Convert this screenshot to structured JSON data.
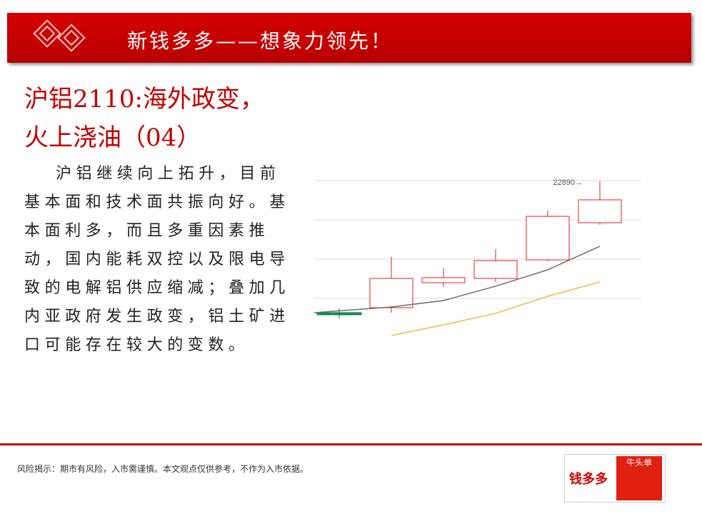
{
  "header": {
    "title": "新钱多多——想象力领先！"
  },
  "headline": [
    "沪铝2110:海外政变，",
    "火上浇油（04）"
  ],
  "body": "沪铝继续向上拓升，目前基本面和技术面共振向好。基本面利多，而且多重因素推动，国内能耗双控以及限电导致的电解铝供应缩减；叠加几内亚政府发生政变，铝土矿进口可能存在较大的变数。",
  "footer": {
    "disclaimer": "风险揭示：期市有风险，入市需谨慎。本文观点仅供参考，不作为入市依据。",
    "logo_left": "钱多多",
    "logo_right": "牛头单"
  },
  "chart_data": {
    "type": "candlestick",
    "categories": [
      null,
      null,
      null,
      null,
      null,
      null
    ],
    "open": [
      21210,
      21282,
      21600,
      21655,
      21891,
      22364
    ],
    "high": [
      21273,
      21927,
      21782,
      22027,
      22518,
      22890
    ],
    "low": [
      21145,
      21218,
      21545,
      21609,
      21873,
      22336
    ],
    "close": [
      21200,
      21655,
      21664,
      21882,
      22445,
      22655
    ],
    "up_color": "#e02020",
    "down_color": "#138a4a",
    "lines": [
      {
        "color": "#6d6d6d",
        "values": [
          21218,
          21291,
          21373,
          21555,
          21764,
          22064
        ]
      },
      {
        "color": "#f5b94a",
        "values": [
          null,
          20927,
          21064,
          21209,
          21427,
          21609
        ]
      }
    ],
    "annotation": "22890→",
    "ylim": [
      20900,
      23100
    ],
    "grid": true
  }
}
